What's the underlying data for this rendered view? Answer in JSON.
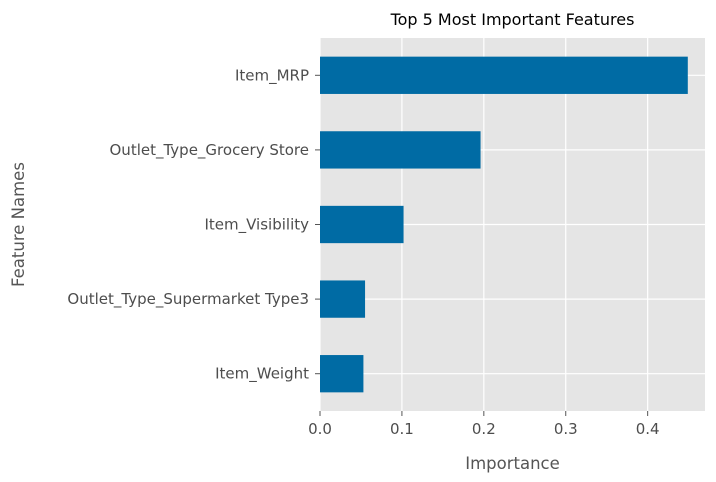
{
  "chart_data": {
    "type": "bar",
    "orientation": "horizontal",
    "title": "Top 5 Most Important Features",
    "xlabel": "Importance",
    "ylabel": "Feature Names",
    "categories": [
      "Item_MRP",
      "Outlet_Type_Grocery Store",
      "Item_Visibility",
      "Outlet_Type_Supermarket Type3",
      "Item_Weight"
    ],
    "values": [
      0.449,
      0.196,
      0.102,
      0.055,
      0.053
    ],
    "xlim": [
      0,
      0.47
    ],
    "xticks": [
      0.0,
      0.1,
      0.2,
      0.3,
      0.4
    ],
    "xtick_labels": [
      "0.0",
      "0.1",
      "0.2",
      "0.3",
      "0.4"
    ],
    "grid": true,
    "legend": "none",
    "colors": {
      "bar": "#006BA4",
      "plot_background": "#E5E5E5",
      "grid": "#FFFFFF"
    }
  }
}
